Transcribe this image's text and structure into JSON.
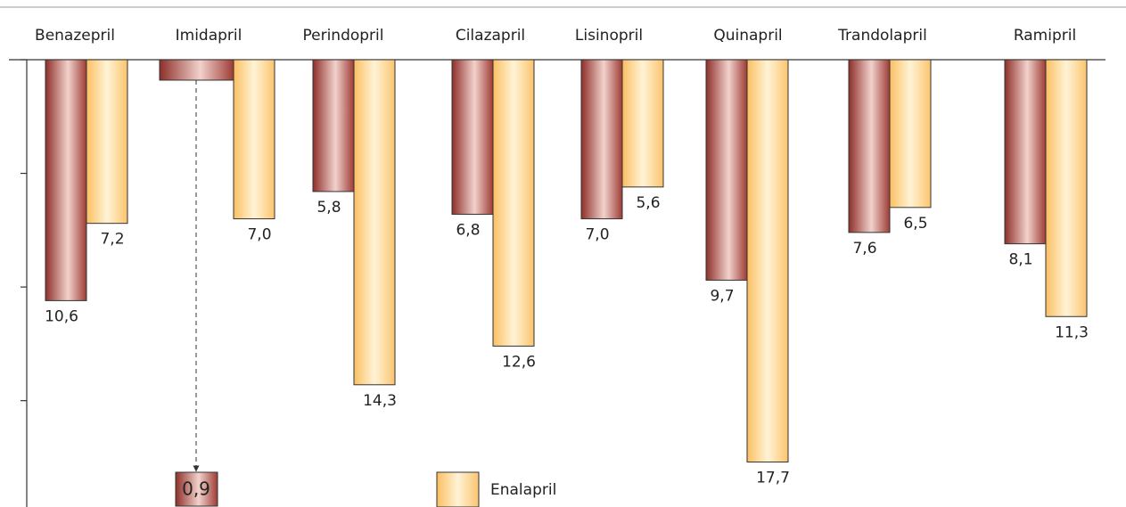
{
  "chart_data": {
    "type": "bar",
    "categories": [
      "Benazepril",
      "Imidapril",
      "Perindopril",
      "Cilazapril",
      "Lisinopril",
      "Quinapril",
      "Trandolapril",
      "Ramipril"
    ],
    "series": [
      {
        "color": "#a9463f",
        "values": [
          10.6,
          0.9,
          5.8,
          6.8,
          7.0,
          9.7,
          7.6,
          8.1
        ],
        "value_labels": [
          "10,6",
          "0,9",
          "5,8",
          "6,8",
          "7,0",
          "9,7",
          "7,6",
          "8,1"
        ]
      },
      {
        "name": "Enalapril",
        "color": "#fbc46e",
        "values": [
          7.2,
          7.0,
          14.3,
          12.6,
          5.6,
          17.7,
          6.5,
          11.3
        ],
        "value_labels": [
          "7,2",
          "7,0",
          "14,3",
          "12,6",
          "5,6",
          "17,7",
          "6,5",
          "11,3"
        ]
      }
    ],
    "ylim": [
      0,
      19.6
    ],
    "yticks": [
      0,
      5,
      10,
      15
    ],
    "inverted": true
  }
}
